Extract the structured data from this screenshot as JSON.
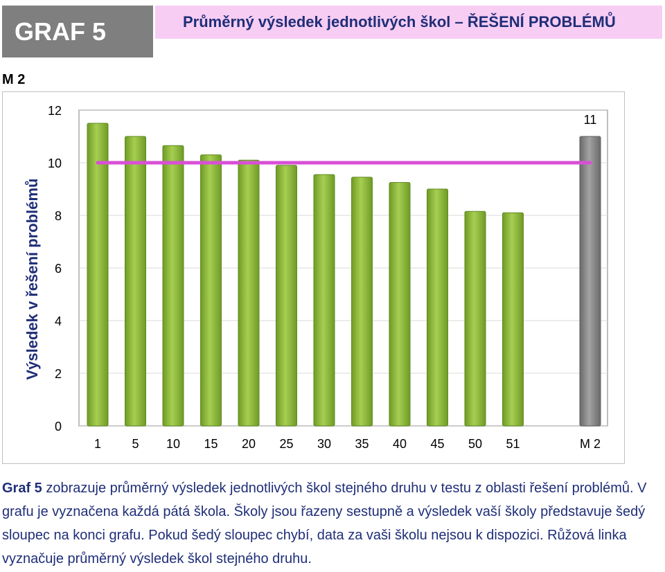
{
  "header": {
    "badge": "GRAF 5",
    "title": "Průměrný výsledek jednotlivých škol – ŘEŠENÍ PROBLÉMŮ"
  },
  "section_label": "M 2",
  "caption": {
    "lead": "Graf 5",
    "text": " zobrazuje průměrný výsledek jednotlivých škol stejného druhu v testu z oblasti řešení problémů. V grafu je vyznačena každá pátá škola. Školy jsou řazeny sestupně a výsledek vaší školy představuje šedý sloupec na konci grafu. Pokud šedý sloupec chybí, data za vaši školu nejsou k dispozici. Růžová linka vyznačuje průměrný výsledek škol stejného druhu."
  },
  "colors": {
    "bar_green": "#8db63c",
    "bar_gray": "#7f7f7f",
    "avg_line": "#d94fd6",
    "badge_bg": "#7f7f7f",
    "title_bg": "#f7cdf3",
    "title_text": "#1f2e78"
  },
  "chart_data": {
    "type": "bar",
    "ylabel": "Výsledek v řešení problémů",
    "xlabel": "",
    "ylim": [
      0,
      12
    ],
    "yticks": [
      0,
      2,
      4,
      6,
      8,
      10,
      12
    ],
    "grid": true,
    "categories": [
      "1",
      "5",
      "10",
      "15",
      "20",
      "25",
      "30",
      "35",
      "40",
      "45",
      "50",
      "51",
      "M 2"
    ],
    "series": [
      {
        "values": [
          11.5,
          11.0,
          10.65,
          10.3,
          10.1,
          9.9,
          9.55,
          9.45,
          9.25,
          9.0,
          8.15,
          8.1,
          11.0
        ]
      }
    ],
    "highlight_index": 12,
    "data_labels": [
      {
        "index": 12,
        "text": "11"
      }
    ],
    "average_line": 10.0
  }
}
